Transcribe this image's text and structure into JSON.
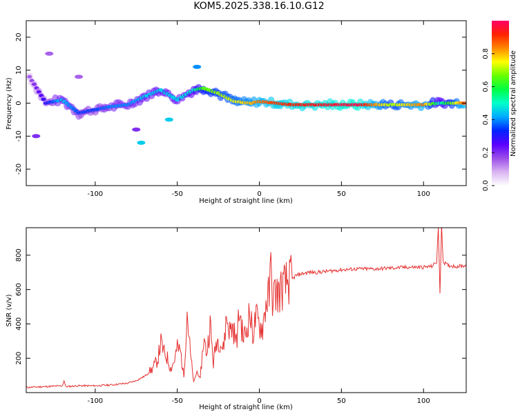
{
  "figure": {
    "title": "KOM5.2025.338.16.10.G12"
  },
  "chart_data": [
    {
      "type": "heatmap",
      "name": "spectrogram",
      "xlabel": "Height of straight line (km)",
      "ylabel": "Frequency (Hz)",
      "xlim": [
        -142,
        126
      ],
      "ylim": [
        -25,
        25
      ],
      "xticks": [
        -100,
        -50,
        0,
        50,
        100
      ],
      "yticks": [
        -20,
        -10,
        0,
        10,
        20
      ],
      "colorbar": {
        "label": "Normalized spectral amplitude",
        "range": [
          0,
          1
        ],
        "ticks": [
          "0.0",
          "0.2",
          "0.4",
          "0.6",
          "0.8"
        ],
        "colors": [
          "#ffffff",
          "#d9b3f2",
          "#9b4de8",
          "#5a00ff",
          "#0022ff",
          "#00aaff",
          "#00ffcc",
          "#00ff44",
          "#66ff00",
          "#ffff00",
          "#ff8800",
          "#ff2200",
          "#ff0066"
        ]
      },
      "ridge": [
        {
          "x": -140,
          "f": 8,
          "a": 0.15
        },
        {
          "x": -130,
          "f": 0,
          "a": 0.3
        },
        {
          "x": -120,
          "f": 1,
          "a": 0.45
        },
        {
          "x": -110,
          "f": -3,
          "a": 0.35
        },
        {
          "x": -100,
          "f": -2,
          "a": 0.35
        },
        {
          "x": -90,
          "f": -1,
          "a": 0.4
        },
        {
          "x": -80,
          "f": -0.5,
          "a": 0.4
        },
        {
          "x": -70,
          "f": 2,
          "a": 0.45
        },
        {
          "x": -60,
          "f": 4,
          "a": 0.45
        },
        {
          "x": -50,
          "f": 1,
          "a": 0.45
        },
        {
          "x": -40,
          "f": 4,
          "a": 0.5
        },
        {
          "x": -34,
          "f": 4.5,
          "a": 0.65
        },
        {
          "x": -25,
          "f": 3,
          "a": 0.7
        },
        {
          "x": -15,
          "f": 0.5,
          "a": 0.75
        },
        {
          "x": -5,
          "f": 0,
          "a": 0.8
        },
        {
          "x": 0,
          "f": 0.5,
          "a": 0.85
        },
        {
          "x": 10,
          "f": 0,
          "a": 0.9
        },
        {
          "x": 20,
          "f": -0.5,
          "a": 0.92
        },
        {
          "x": 40,
          "f": -0.5,
          "a": 0.95
        },
        {
          "x": 60,
          "f": -0.5,
          "a": 0.98
        },
        {
          "x": 80,
          "f": -0.5,
          "a": 0.7
        },
        {
          "x": 100,
          "f": -0.5,
          "a": 0.85
        },
        {
          "x": 110,
          "f": 0,
          "a": 0.5
        },
        {
          "x": 126,
          "f": 0,
          "a": 0.9
        }
      ],
      "isolated_patches": [
        {
          "x": -72,
          "f": -12,
          "a": 0.45
        },
        {
          "x": -55,
          "f": -5,
          "a": 0.45
        },
        {
          "x": -38,
          "f": 11,
          "a": 0.4
        },
        {
          "x": -75,
          "f": -8,
          "a": 0.2
        },
        {
          "x": -110,
          "f": 8,
          "a": 0.15
        },
        {
          "x": -136,
          "f": -10,
          "a": 0.2
        },
        {
          "x": -128,
          "f": 15,
          "a": 0.15
        }
      ]
    },
    {
      "type": "line",
      "name": "snr",
      "xlabel": "Height of straight line (km)",
      "ylabel": "SNR (v/v)",
      "xlim": [
        -142,
        126
      ],
      "ylim": [
        0,
        960
      ],
      "xticks": [
        -100,
        -50,
        0,
        50,
        100
      ],
      "yticks": [
        200,
        400,
        600,
        800
      ],
      "series": [
        {
          "name": "SNR",
          "color": "#e53030",
          "x": [
            -142,
            -130,
            -120,
            -119,
            -118,
            -110,
            -100,
            -90,
            -80,
            -75,
            -70,
            -68,
            -65,
            -62,
            -60,
            -58,
            -56,
            -54,
            -52,
            -50,
            -48,
            -46,
            -44,
            -42,
            -40,
            -38,
            -36,
            -34,
            -32,
            -30,
            -28,
            -26,
            -24,
            -22,
            -20,
            -18,
            -16,
            -14,
            -12,
            -10,
            -8,
            -6,
            -4,
            -2,
            0,
            2,
            4,
            6,
            7,
            8,
            10,
            12,
            14,
            16,
            18,
            20,
            22,
            25,
            30,
            35,
            40,
            45,
            50,
            60,
            70,
            80,
            90,
            100,
            105,
            108,
            109,
            110,
            111,
            112,
            115,
            120,
            126
          ],
          "values": [
            30,
            35,
            40,
            70,
            35,
            40,
            40,
            45,
            55,
            70,
            95,
            110,
            140,
            190,
            290,
            230,
            200,
            140,
            180,
            260,
            240,
            90,
            480,
            220,
            60,
            120,
            80,
            310,
            230,
            400,
            170,
            310,
            300,
            250,
            440,
            360,
            380,
            290,
            480,
            320,
            350,
            470,
            340,
            440,
            390,
            380,
            520,
            570,
            720,
            560,
            580,
            580,
            610,
            630,
            650,
            660,
            680,
            690,
            700,
            700,
            705,
            710,
            715,
            720,
            720,
            725,
            730,
            730,
            735,
            760,
            960,
            580,
            980,
            760,
            740,
            735,
            740
          ]
        }
      ]
    }
  ]
}
